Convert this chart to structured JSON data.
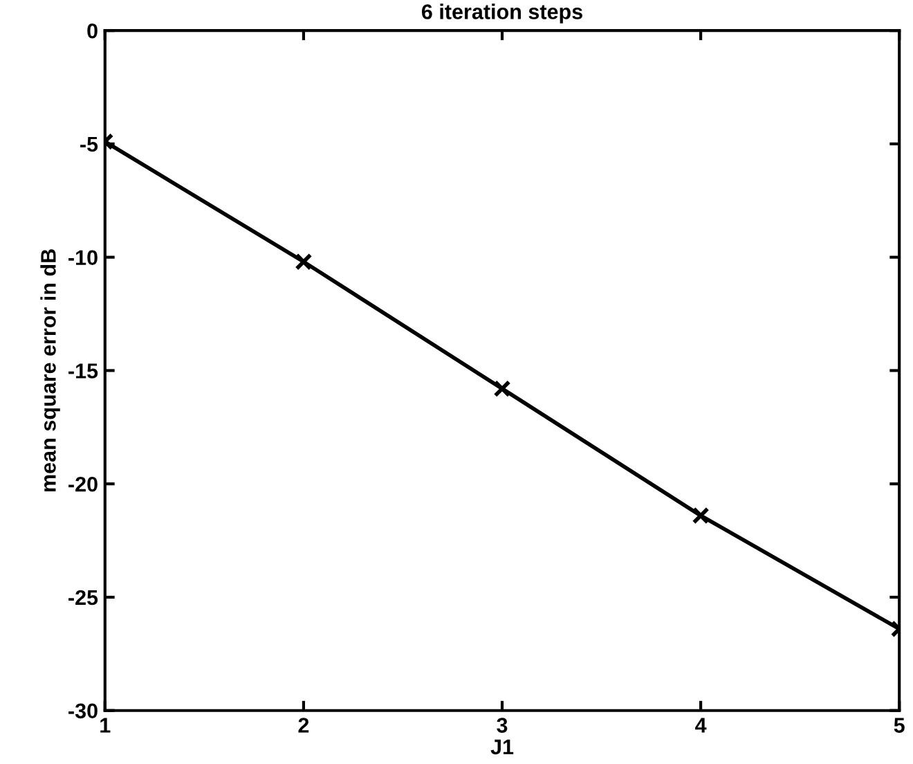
{
  "chart_data": {
    "type": "line",
    "title": "6 iteration steps",
    "xlabel": "J1",
    "ylabel": "mean square error in dB",
    "x": [
      1,
      2,
      3,
      4,
      5
    ],
    "series": [
      {
        "color": "#000000",
        "values": [
          -4.9,
          -10.2,
          -15.8,
          -21.4,
          -26.4
        ]
      }
    ],
    "xlim": [
      1,
      5
    ],
    "xticks": [
      1,
      2,
      3,
      4,
      5
    ],
    "ylim": [
      -30,
      0
    ],
    "yticks": [
      -30,
      -25,
      -20,
      -15,
      -10,
      -5,
      0
    ],
    "grid": false,
    "marker": "cross",
    "line_style": "solid"
  }
}
